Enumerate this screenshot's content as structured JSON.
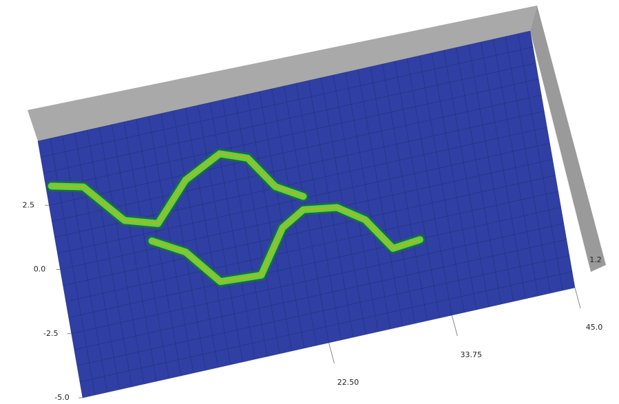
{
  "chart_data": {
    "type": "surface",
    "xlim": [
      0,
      45
    ],
    "ylim": [
      -5,
      5
    ],
    "xticks": [
      {
        "value": 22.5,
        "label": "22.50"
      },
      33.75,
      {
        "value": 45,
        "label": "45.0"
      }
    ],
    "yticks": [
      {
        "value": -5,
        "label": "-5.0"
      },
      -2.5,
      {
        "value": 0,
        "label": "0.0"
      },
      2.5
    ],
    "zticks": [
      1.2
    ],
    "color": "#2f3fa3",
    "ridge_color": "#5fd43a",
    "series": [
      {
        "x": [
          0.5,
          3.3,
          6.4,
          9.3,
          12.4,
          15.8,
          18.2,
          20.2,
          22.5
        ],
        "y": [
          3.2,
          2.9,
          1.3,
          0.9,
          2.3,
          3.0,
          2.6,
          1.3,
          0.7
        ]
      },
      {
        "x": [
          8.5,
          11.3,
          13.9,
          17.6,
          20.2,
          22.3,
          25.3,
          27.6,
          29.6,
          32.1
        ],
        "y": [
          0.3,
          -0.4,
          -1.8,
          -1.9,
          -0.3,
          0.2,
          0.0,
          -0.7,
          -2.0,
          -1.9
        ]
      }
    ]
  }
}
